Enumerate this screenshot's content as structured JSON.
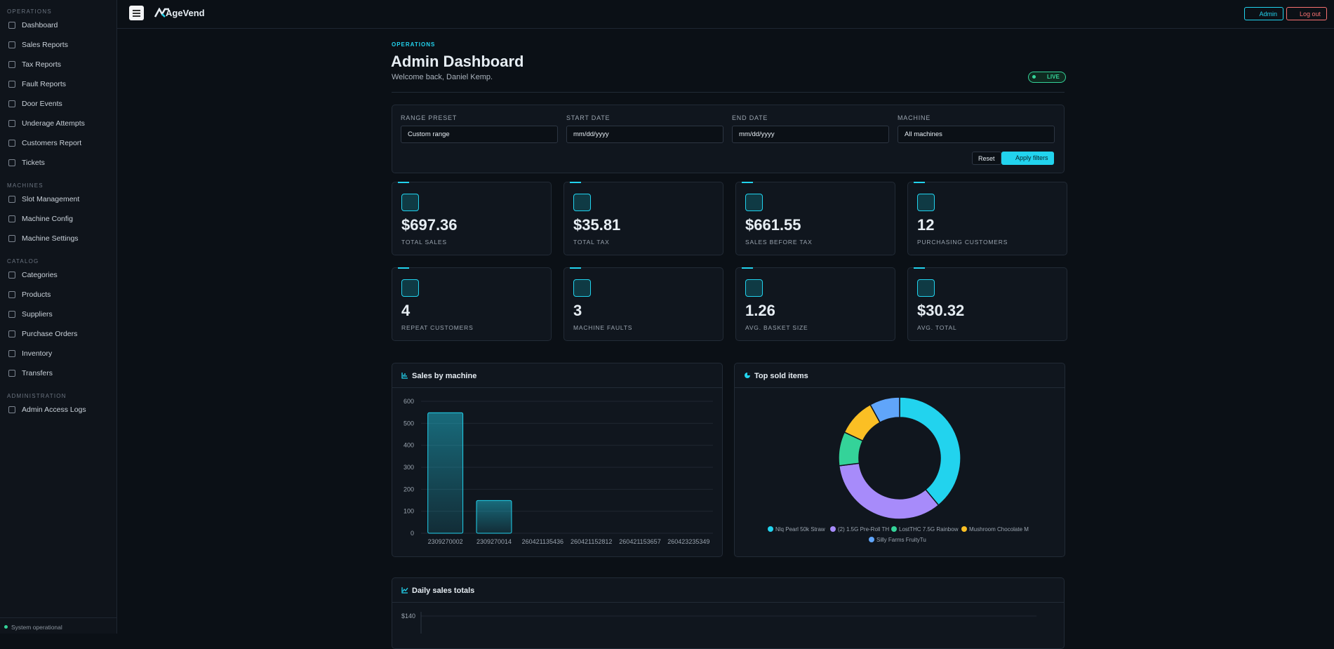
{
  "sidebar": {
    "sections": [
      {
        "title": "OPERATIONS",
        "items": [
          "Dashboard",
          "Sales Reports",
          "Tax Reports",
          "Fault Reports",
          "Door Events",
          "Underage Attempts",
          "Customers Report",
          "Tickets"
        ]
      },
      {
        "title": "MACHINES",
        "items": [
          "Slot Management",
          "Machine Config",
          "Machine Settings"
        ]
      },
      {
        "title": "CATALOG",
        "items": [
          "Categories",
          "Products",
          "Suppliers",
          "Purchase Orders",
          "Inventory",
          "Transfers"
        ]
      },
      {
        "title": "ADMINISTRATION",
        "items": [
          "Admin Access Logs"
        ]
      }
    ],
    "status": "System operational"
  },
  "topbar": {
    "brand": "AgeVend",
    "admin": "Admin",
    "logout": "Log out"
  },
  "header": {
    "eyebrow": "OPERATIONS",
    "title": "Admin Dashboard",
    "welcome": "Welcome back, Daniel Kemp.",
    "badge": "LIVE"
  },
  "filters": {
    "fields": [
      {
        "label": "RANGE PRESET",
        "value": "Custom range"
      },
      {
        "label": "START DATE",
        "value": "mm/dd/yyyy"
      },
      {
        "label": "END DATE",
        "value": "mm/dd/yyyy"
      },
      {
        "label": "MACHINE",
        "value": "All machines"
      }
    ],
    "reset": "Reset",
    "apply": "Apply filters"
  },
  "stats": [
    {
      "value": "$697.36",
      "label": "TOTAL SALES"
    },
    {
      "value": "$35.81",
      "label": "TOTAL TAX"
    },
    {
      "value": "$661.55",
      "label": "SALES BEFORE TAX"
    },
    {
      "value": "12",
      "label": "PURCHASING CUSTOMERS"
    },
    {
      "value": "4",
      "label": "REPEAT CUSTOMERS"
    },
    {
      "value": "3",
      "label": "MACHINE FAULTS"
    },
    {
      "value": "1.26",
      "label": "AVG. BASKET SIZE"
    },
    {
      "value": "$30.32",
      "label": "AVG. TOTAL"
    }
  ],
  "chart_data": [
    {
      "type": "bar",
      "title": "Sales by machine",
      "categories": [
        "2309270002",
        "2309270014",
        "260421135436",
        "260421152812",
        "260421153657",
        "260423235349"
      ],
      "values": [
        548,
        149,
        0,
        0,
        0,
        0
      ],
      "color": "#22d3ee",
      "ylim": [
        0,
        600
      ],
      "yticks": [
        0,
        100,
        200,
        300,
        400,
        500,
        600
      ],
      "grid": true
    },
    {
      "type": "donut",
      "title": "Top sold items",
      "categories": [
        "Nlq Pearl  50k Straw",
        "(2) 1.5G Pre-Roll TH",
        "LostTHC 7.5G Rainbow",
        "Mushroom Chocolate M",
        "Silly Farms FruityTu"
      ],
      "values": [
        39,
        34,
        9,
        10,
        8
      ],
      "colors": [
        "#22d3ee",
        "#a78bfa",
        "#34d399",
        "#fbbf24",
        "#60a5fa"
      ]
    },
    {
      "type": "line",
      "title": "Daily sales totals",
      "yticks": [
        {
          "value": 140,
          "label": "$140"
        }
      ],
      "grid": true
    }
  ]
}
